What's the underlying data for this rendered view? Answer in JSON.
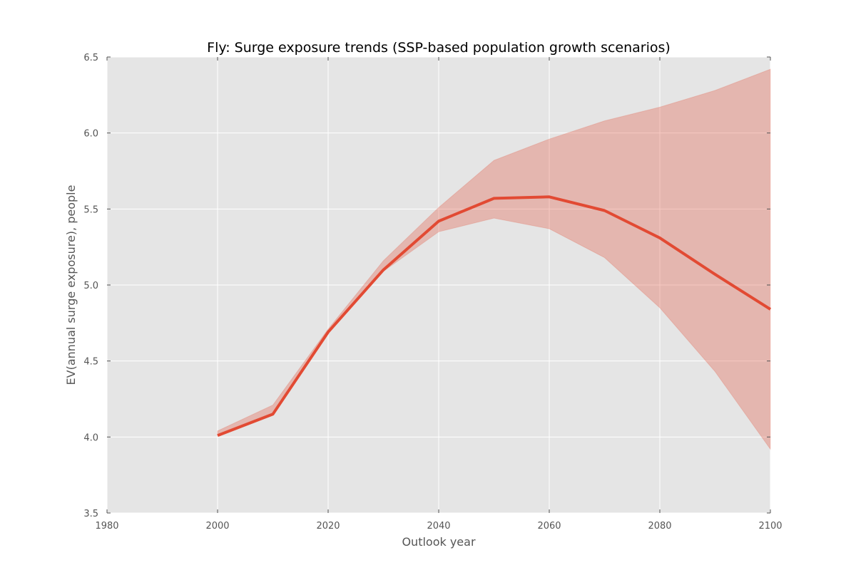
{
  "chart_data": {
    "type": "line",
    "title": "Fly: Surge exposure trends (SSP-based population growth scenarios)",
    "xlabel": "Outlook year",
    "ylabel": "EV(annual surge exposure), people",
    "xlim": [
      1980,
      2100
    ],
    "ylim": [
      3.5,
      6.5
    ],
    "xticks": [
      1980,
      2000,
      2020,
      2040,
      2060,
      2080,
      2100
    ],
    "yticks": [
      3.5,
      4.0,
      4.5,
      5.0,
      5.5,
      6.0,
      6.5
    ],
    "xtick_labels": [
      "1980",
      "2000",
      "2020",
      "2040",
      "2060",
      "2080",
      "2100"
    ],
    "ytick_labels": [
      "3.5",
      "4.0",
      "4.5",
      "5.0",
      "5.5",
      "6.0",
      "6.5"
    ],
    "grid": true,
    "background_color": "#e5e5e5",
    "line_color": "#e24a33",
    "band_color": "#e24a33",
    "x": [
      2000,
      2010,
      2020,
      2030,
      2040,
      2050,
      2060,
      2070,
      2080,
      2090,
      2100
    ],
    "series": [
      {
        "values": [
          4.01,
          4.15,
          4.69,
          5.1,
          5.42,
          5.57,
          5.58,
          5.49,
          5.31,
          5.07,
          4.84
        ]
      }
    ],
    "band": {
      "upper": [
        4.04,
        4.21,
        4.71,
        5.16,
        5.51,
        5.82,
        5.96,
        6.08,
        6.17,
        6.28,
        6.42
      ],
      "lower": [
        4.01,
        4.15,
        4.69,
        5.09,
        5.35,
        5.44,
        5.37,
        5.18,
        4.85,
        4.43,
        3.92
      ]
    }
  }
}
